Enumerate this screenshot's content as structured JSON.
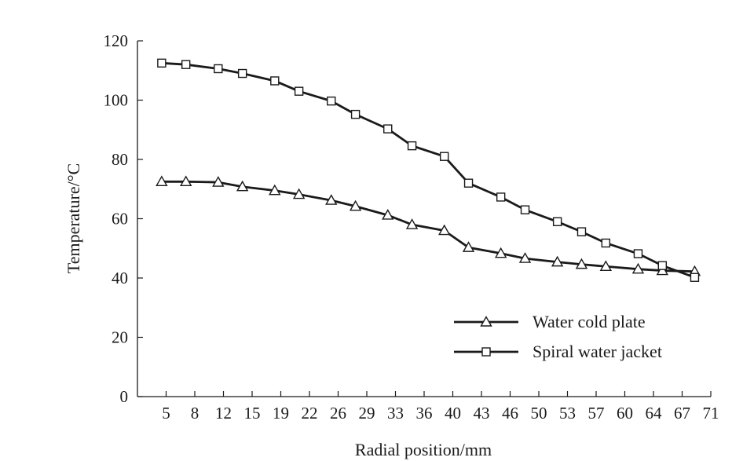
{
  "chart_data": {
    "type": "line",
    "xlabel": "Radial position/mm",
    "ylabel": "Temperature/°C",
    "ylim": [
      0,
      120
    ],
    "yticks": [
      0,
      20,
      40,
      60,
      80,
      100,
      120
    ],
    "xtick_labels": [
      "5",
      "8",
      "12",
      "15",
      "19",
      "22",
      "26",
      "29",
      "33",
      "36",
      "40",
      "43",
      "46",
      "50",
      "53",
      "57",
      "60",
      "64",
      "67",
      "71"
    ],
    "x": [
      3,
      6,
      10,
      13,
      17,
      20,
      24,
      27,
      31,
      34,
      38,
      41,
      45,
      48,
      52,
      55,
      58,
      62,
      65,
      69
    ],
    "xlim": [
      0,
      71
    ],
    "grid": false,
    "legend_position": "bottom-right",
    "series": [
      {
        "name": "Water cold plate",
        "marker": "triangle",
        "color": "#1a1a1a",
        "values": [
          72.5,
          72.5,
          72.3,
          70.8,
          69.5,
          68.2,
          66.2,
          64.2,
          61.2,
          58.0,
          56.0,
          50.3,
          48.3,
          46.6,
          45.4,
          44.6,
          43.9,
          43.0,
          42.5,
          42.2
        ]
      },
      {
        "name": "Spiral water jacket",
        "marker": "square",
        "color": "#1a1a1a",
        "values": [
          112.5,
          112.0,
          110.6,
          109.0,
          106.5,
          103.0,
          99.7,
          95.2,
          90.3,
          84.6,
          81.0,
          72.0,
          67.3,
          63.0,
          59.0,
          55.6,
          51.8,
          48.2,
          44.2,
          40.2
        ]
      }
    ]
  }
}
